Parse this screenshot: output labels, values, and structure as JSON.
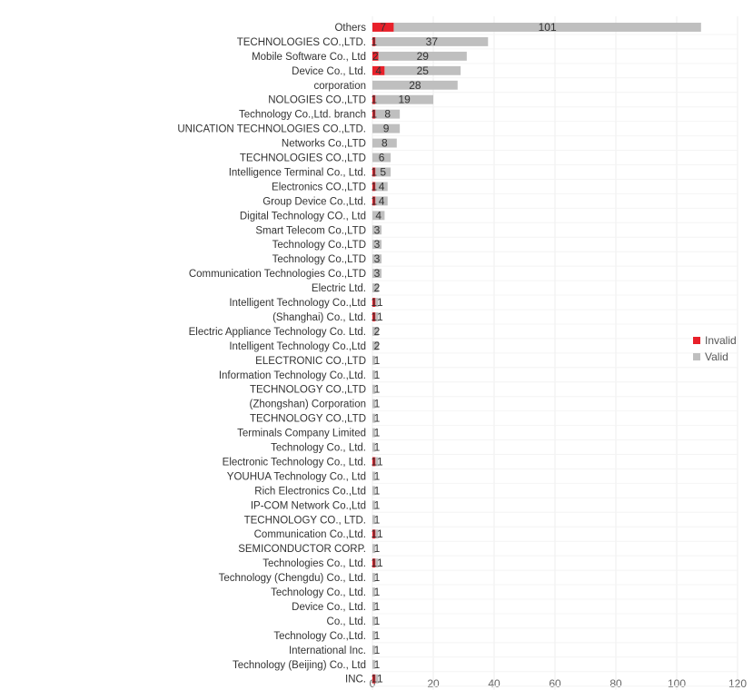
{
  "chart_data": {
    "type": "bar",
    "orientation": "horizontal",
    "stacked": true,
    "categories": [
      "Others",
      "TECHNOLOGIES CO.,LTD.",
      "Mobile Software Co., Ltd",
      "Device Co., Ltd.",
      "corporation",
      "NOLOGIES CO.,LTD",
      "Technology Co.,Ltd. branch",
      "UNICATION TECHNOLOGIES CO.,LTD.",
      "Networks Co.,LTD",
      "TECHNOLOGIES CO.,LTD",
      "Intelligence Terminal Co., Ltd.",
      "Electronics CO.,LTD",
      "Group Device Co.,Ltd.",
      "Digital Technology CO., Ltd",
      "Smart Telecom Co.,LTD",
      "Technology Co.,LTD",
      "Technology Co.,LTD",
      "Communication Technologies Co.,LTD",
      "Electric Ltd.",
      "Intelligent Technology Co.,Ltd",
      "(Shanghai) Co., Ltd.",
      "Electric Appliance Technology Co. Ltd.",
      "Intelligent Technology Co.,Ltd",
      "ELECTRONIC CO.,LTD",
      "Information Technology Co.,Ltd.",
      "TECHNOLOGY CO.,LTD",
      "(Zhongshan) Corporation",
      "TECHNOLOGY CO.,LTD",
      "Terminals Company Limited",
      "Technology Co., Ltd.",
      "Electronic Technology Co., Ltd.",
      "YOUHUA Technology Co., Ltd",
      "Rich Electronics Co.,Ltd",
      "IP-COM Network Co.,Ltd",
      "TECHNOLOGY CO., LTD.",
      "Communication Co.,Ltd.",
      "SEMICONDUCTOR CORP.",
      "Technologies Co., Ltd.",
      "Technology (Chengdu) Co., Ltd.",
      "Technology Co., Ltd.",
      "Device Co., Ltd.",
      "Co., Ltd.",
      "Technology Co.,Ltd.",
      "International Inc.",
      "Technology (Beijing) Co., Ltd",
      "INC."
    ],
    "series": [
      {
        "name": "Invalid",
        "color": "#e8202a",
        "values": [
          7,
          1,
          2,
          4,
          0,
          1,
          1,
          0,
          0,
          0,
          1,
          1,
          1,
          0,
          0,
          0,
          0,
          0,
          0,
          1,
          1,
          0,
          0,
          0,
          0,
          0,
          0,
          0,
          0,
          0,
          1,
          0,
          0,
          0,
          0,
          1,
          0,
          1,
          0,
          0,
          0,
          0,
          0,
          0,
          0,
          1
        ]
      },
      {
        "name": "Valid",
        "color": "#bfbfbf",
        "values": [
          101,
          37,
          29,
          25,
          28,
          19,
          8,
          9,
          8,
          6,
          5,
          4,
          4,
          4,
          3,
          3,
          3,
          3,
          2,
          1,
          1,
          2,
          2,
          1,
          1,
          1,
          1,
          1,
          1,
          1,
          1,
          1,
          1,
          1,
          1,
          1,
          1,
          1,
          1,
          1,
          1,
          1,
          1,
          1,
          1,
          1
        ]
      }
    ],
    "data_labels": {
      "invalid": [
        "7",
        "1",
        "2",
        "4",
        "",
        "1",
        "1",
        "",
        "",
        "",
        "1",
        "1",
        "1",
        "",
        "",
        "",
        "",
        "",
        "",
        "1",
        "1",
        "",
        "",
        "",
        "",
        "",
        "",
        "",
        "",
        "",
        "1",
        "",
        "",
        "",
        "",
        "1",
        "",
        "1",
        "",
        "",
        "",
        "",
        "",
        "",
        "",
        "1"
      ],
      "valid": [
        "101",
        "37",
        "29",
        "25",
        "28",
        "19",
        "8",
        "9",
        "8",
        "6",
        "5",
        "4",
        "4",
        "4",
        "3",
        "3",
        "3",
        "3",
        "2",
        "1",
        "1",
        "2",
        "2",
        "1",
        "1",
        "1",
        "1",
        "1",
        "1",
        "1",
        "1",
        "1",
        "1",
        "1",
        "1",
        "1",
        "1",
        "1",
        "1",
        "1",
        "1",
        "1",
        "1",
        "1",
        "1",
        "1"
      ]
    },
    "xlim": [
      0,
      120
    ],
    "xticks": [
      "0",
      "20",
      "40",
      "60",
      "80",
      "100",
      "120"
    ],
    "grid": true,
    "legend_position": "right"
  },
  "legend": {
    "invalid_label": "Invalid",
    "valid_label": "Valid",
    "invalid_color": "#e8202a",
    "valid_color": "#bfbfbf"
  }
}
